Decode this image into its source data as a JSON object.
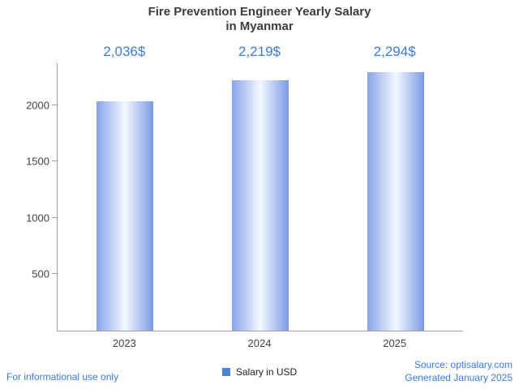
{
  "title": {
    "line1": "Fire Prevention Engineer Yearly Salary",
    "line2": "in Myanmar"
  },
  "chart_data": {
    "type": "bar",
    "title": "Fire Prevention Engineer Yearly Salary in Myanmar",
    "categories": [
      "2023",
      "2024",
      "2025"
    ],
    "values": [
      2036,
      2219,
      2294
    ],
    "value_labels": [
      "2,036$",
      "2,219$",
      "2,294$"
    ],
    "series_name": "Salary in USD",
    "xlabel": "",
    "ylabel": "",
    "yticks": [
      500,
      1000,
      1500,
      2000
    ],
    "ylim": [
      0,
      2370
    ],
    "grid": false,
    "legend_position": "bottom"
  },
  "legend": {
    "label": "Salary in USD",
    "color": "#4f81d8"
  },
  "footer": {
    "note": "For informational use only",
    "source": "Source: optisalary.com",
    "generated": "Generated January 2025"
  },
  "colors": {
    "accent_blue": "#3c7bd9",
    "bar_edge": "#7fa0e8",
    "bar_center": "#f4f8ff",
    "axis": "#9e9e9e",
    "text_dark": "#424242"
  }
}
